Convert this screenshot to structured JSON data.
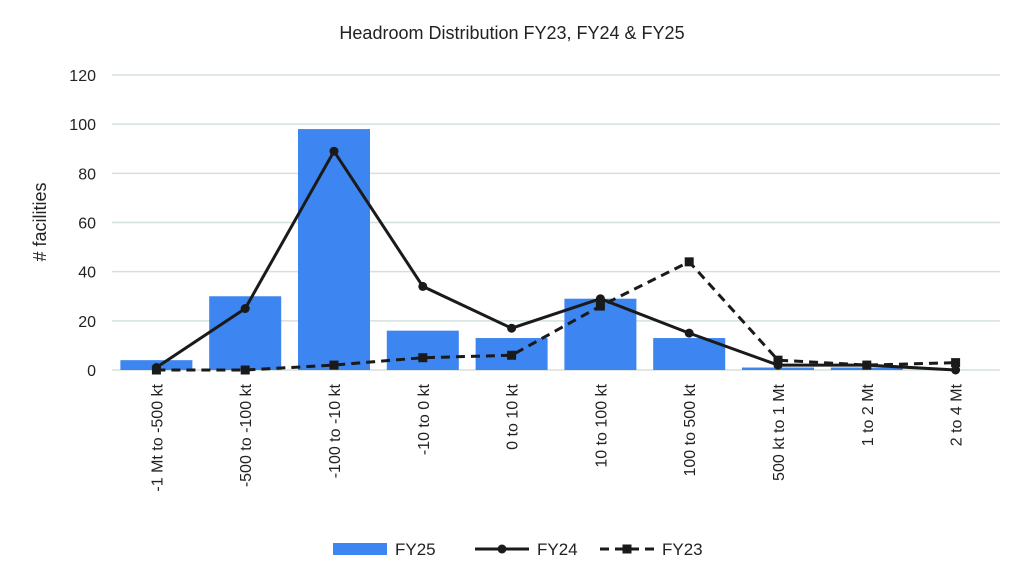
{
  "chart_data": {
    "type": "bar",
    "title": "Headroom Distribution FY23, FY24 & FY25",
    "xlabel": "",
    "ylabel": "# facilities",
    "ylim": [
      0,
      120
    ],
    "yticks": [
      0,
      20,
      40,
      60,
      80,
      100,
      120
    ],
    "grid": true,
    "legend_position": "bottom",
    "categories": [
      "-1 Mt to -500 kt",
      "-500 to -100 kt",
      "-100 to -10 kt",
      "-10 to 0 kt",
      "0 to 10 kt",
      "10 to 100 kt",
      "100 to 500 kt",
      "500 kt to 1 Mt",
      "1 to 2 Mt",
      "2 to 4 Mt"
    ],
    "series": [
      {
        "name": "FY25",
        "type": "bar",
        "color": "#3d85f0",
        "values": [
          4,
          30,
          98,
          16,
          13,
          29,
          13,
          1,
          1,
          0
        ]
      },
      {
        "name": "FY24",
        "type": "line",
        "style": "solid",
        "marker": "circle",
        "color": "#1a1a1a",
        "values": [
          1,
          25,
          89,
          34,
          17,
          29,
          15,
          2,
          2,
          0
        ]
      },
      {
        "name": "FY23",
        "type": "line",
        "style": "dashed",
        "marker": "square",
        "color": "#1a1a1a",
        "values": [
          0,
          0,
          2,
          5,
          6,
          26,
          44,
          4,
          2,
          3
        ]
      }
    ]
  }
}
